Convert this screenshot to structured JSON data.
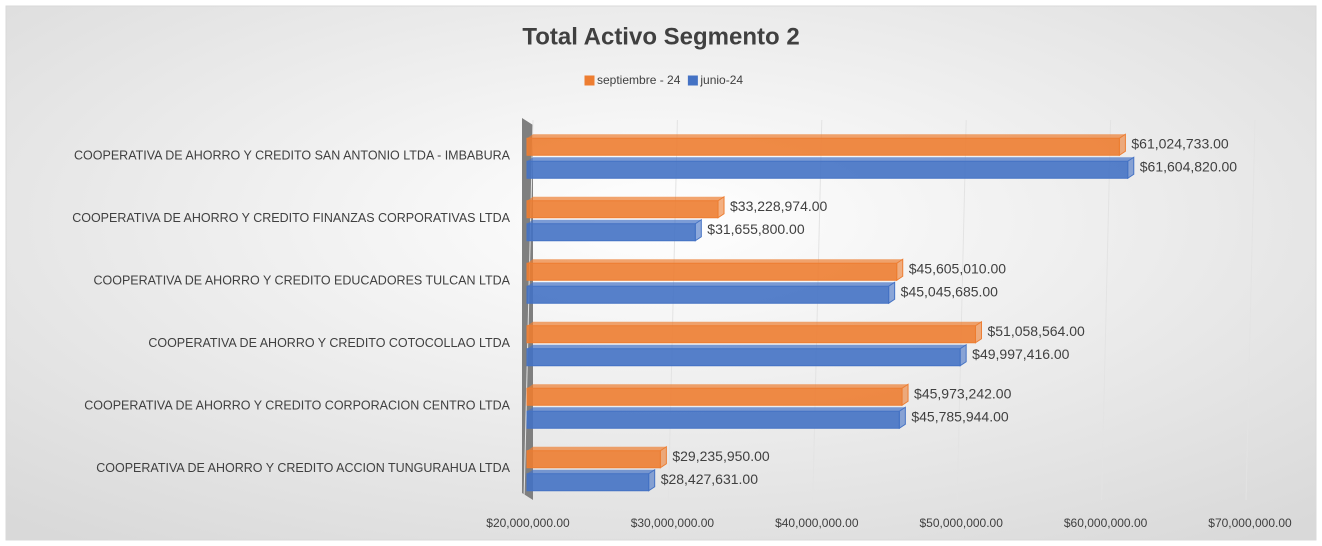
{
  "chart_data": {
    "type": "bar",
    "orientation": "horizontal",
    "title": "Total Activo Segmento 2",
    "categories": [
      "COOPERATIVA DE AHORRO Y CREDITO SAN ANTONIO LTDA - IMBABURA",
      "COOPERATIVA DE AHORRO Y CREDITO FINANZAS CORPORATIVAS LTDA",
      "COOPERATIVA DE AHORRO Y CREDITO EDUCADORES TULCAN LTDA",
      "COOPERATIVA DE AHORRO Y CREDITO COTOCOLLAO LTDA",
      "COOPERATIVA DE AHORRO Y CREDITO CORPORACION CENTRO LTDA",
      "COOPERATIVA DE AHORRO Y CREDITO ACCION TUNGURAHUA LTDA"
    ],
    "series": [
      {
        "name": "septiembre - 24",
        "color": "#ed7d31",
        "values": [
          61024733,
          33228974,
          45605010,
          51058564,
          45973242,
          29235950
        ],
        "value_labels": [
          "$61,024,733.00",
          "$33,228,974.00",
          "$45,605,010.00",
          "$51,058,564.00",
          "$45,973,242.00",
          "$29,235,950.00"
        ]
      },
      {
        "name": "junio-24",
        "color": "#4472c4",
        "values": [
          61604820,
          31655800,
          45045685,
          49997416,
          45785944,
          28427631
        ],
        "value_labels": [
          "$61,604,820.00",
          "$31,655,800.00",
          "$45,045,685.00",
          "$49,997,416.00",
          "$45,785,944.00",
          "$28,427,631.00"
        ]
      }
    ],
    "xlim": [
      20000000,
      70000000
    ],
    "xticks": [
      {
        "value": 20000000,
        "label": "$20,000,000.00"
      },
      {
        "value": 30000000,
        "label": "$30,000,000.00"
      },
      {
        "value": 40000000,
        "label": "$40,000,000.00"
      },
      {
        "value": 50000000,
        "label": "$50,000,000.00"
      },
      {
        "value": 60000000,
        "label": "$60,000,000.00"
      },
      {
        "value": 70000000,
        "label": "$70,000,000.00"
      }
    ],
    "grid": true,
    "legend": "top"
  }
}
